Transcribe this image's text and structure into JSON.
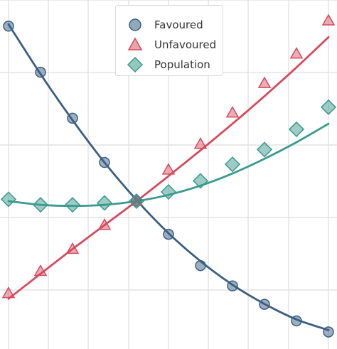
{
  "chart_data": {
    "type": "line",
    "title": "",
    "xlabel": "",
    "ylabel": "",
    "xlim": [
      -0.2,
      10.2
    ],
    "ylim": [
      -0.5,
      9.1
    ],
    "grid": true,
    "legend_position": "top-center",
    "series": [
      {
        "name": "Favoured",
        "color": "#3b5f82",
        "marker": "circle",
        "x": [
          0,
          1,
          2,
          3,
          4,
          5,
          6,
          7,
          8,
          9,
          10
        ],
        "points": [
          8.7,
          7.45,
          6.2,
          5.0,
          3.95,
          3.05,
          2.2,
          1.65,
          1.15,
          0.7,
          0.4
        ],
        "curve": [
          8.75,
          7.4,
          6.15,
          5.0,
          3.98,
          3.08,
          2.32,
          1.68,
          1.16,
          0.74,
          0.45
        ]
      },
      {
        "name": "Unfavoured",
        "color": "#d64a5c",
        "marker": "triangle",
        "x": [
          0,
          1,
          2,
          3,
          4,
          5,
          6,
          7,
          8,
          9,
          10
        ],
        "points": [
          1.45,
          2.05,
          2.65,
          3.3,
          3.95,
          4.8,
          5.5,
          6.35,
          7.15,
          7.95,
          8.85
        ],
        "curve": [
          1.3,
          1.98,
          2.65,
          3.3,
          3.95,
          4.63,
          5.33,
          6.05,
          6.8,
          7.58,
          8.4
        ]
      },
      {
        "name": "Population",
        "color": "#3a9a8c",
        "marker": "diamond",
        "x": [
          0,
          1,
          2,
          3,
          4,
          5,
          6,
          7,
          8,
          9,
          10
        ],
        "points": [
          4.0,
          3.85,
          3.85,
          3.9,
          3.95,
          4.2,
          4.5,
          4.95,
          5.35,
          5.9,
          6.5
        ],
        "curve": [
          3.95,
          3.85,
          3.82,
          3.85,
          3.95,
          4.12,
          4.37,
          4.7,
          5.1,
          5.55,
          6.05
        ]
      }
    ]
  }
}
